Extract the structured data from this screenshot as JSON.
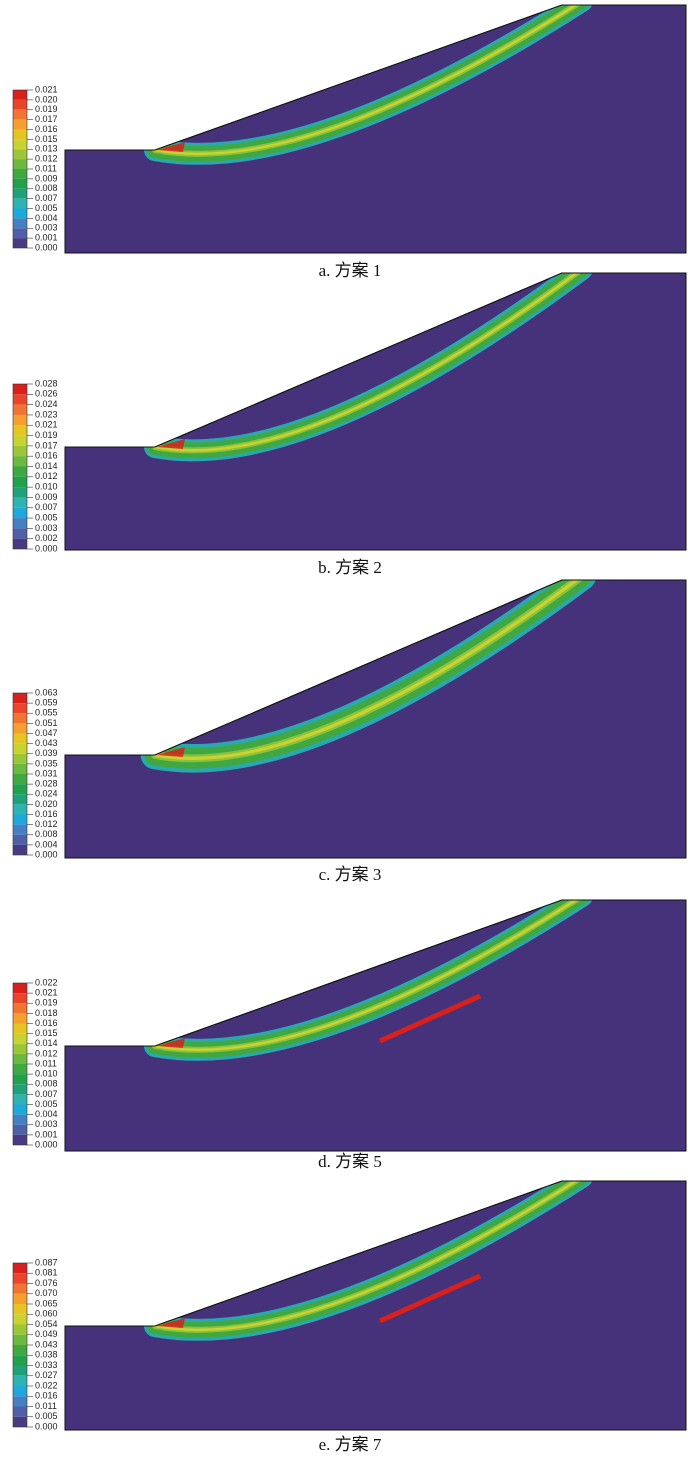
{
  "panels": [
    {
      "caption": "a. 方案 1",
      "legend": [
        "0.021",
        "0.020",
        "0.019",
        "0.017",
        "0.016",
        "0.015",
        "0.013",
        "0.012",
        "0.011",
        "0.009",
        "0.008",
        "0.007",
        "0.005",
        "0.004",
        "0.003",
        "0.001",
        "0.000"
      ]
    },
    {
      "caption": "b. 方案 2",
      "legend": [
        "0.028",
        "0.026",
        "0.024",
        "0.023",
        "0.021",
        "0.019",
        "0.017",
        "0.016",
        "0.014",
        "0.012",
        "0.010",
        "0.009",
        "0.007",
        "0.005",
        "0.003",
        "0.002",
        "0.000"
      ]
    },
    {
      "caption": "c. 方案 3",
      "legend": [
        "0.063",
        "0.059",
        "0.055",
        "0.051",
        "0.047",
        "0.043",
        "0.039",
        "0.035",
        "0.031",
        "0.028",
        "0.024",
        "0.020",
        "0.016",
        "0.012",
        "0.008",
        "0.004",
        "0.000"
      ]
    },
    {
      "caption": "d. 方案 5",
      "legend": [
        "0.022",
        "0.021",
        "0.019",
        "0.018",
        "0.016",
        "0.015",
        "0.014",
        "0.012",
        "0.011",
        "0.010",
        "0.008",
        "0.007",
        "0.005",
        "0.004",
        "0.003",
        "0.001",
        "0.000"
      ]
    },
    {
      "caption": "e. 方案 7",
      "legend": [
        "0.087",
        "0.081",
        "0.076",
        "0.070",
        "0.065",
        "0.060",
        "0.054",
        "0.049",
        "0.043",
        "0.038",
        "0.033",
        "0.027",
        "0.022",
        "0.016",
        "0.011",
        "0.005",
        "0.000"
      ]
    }
  ]
}
